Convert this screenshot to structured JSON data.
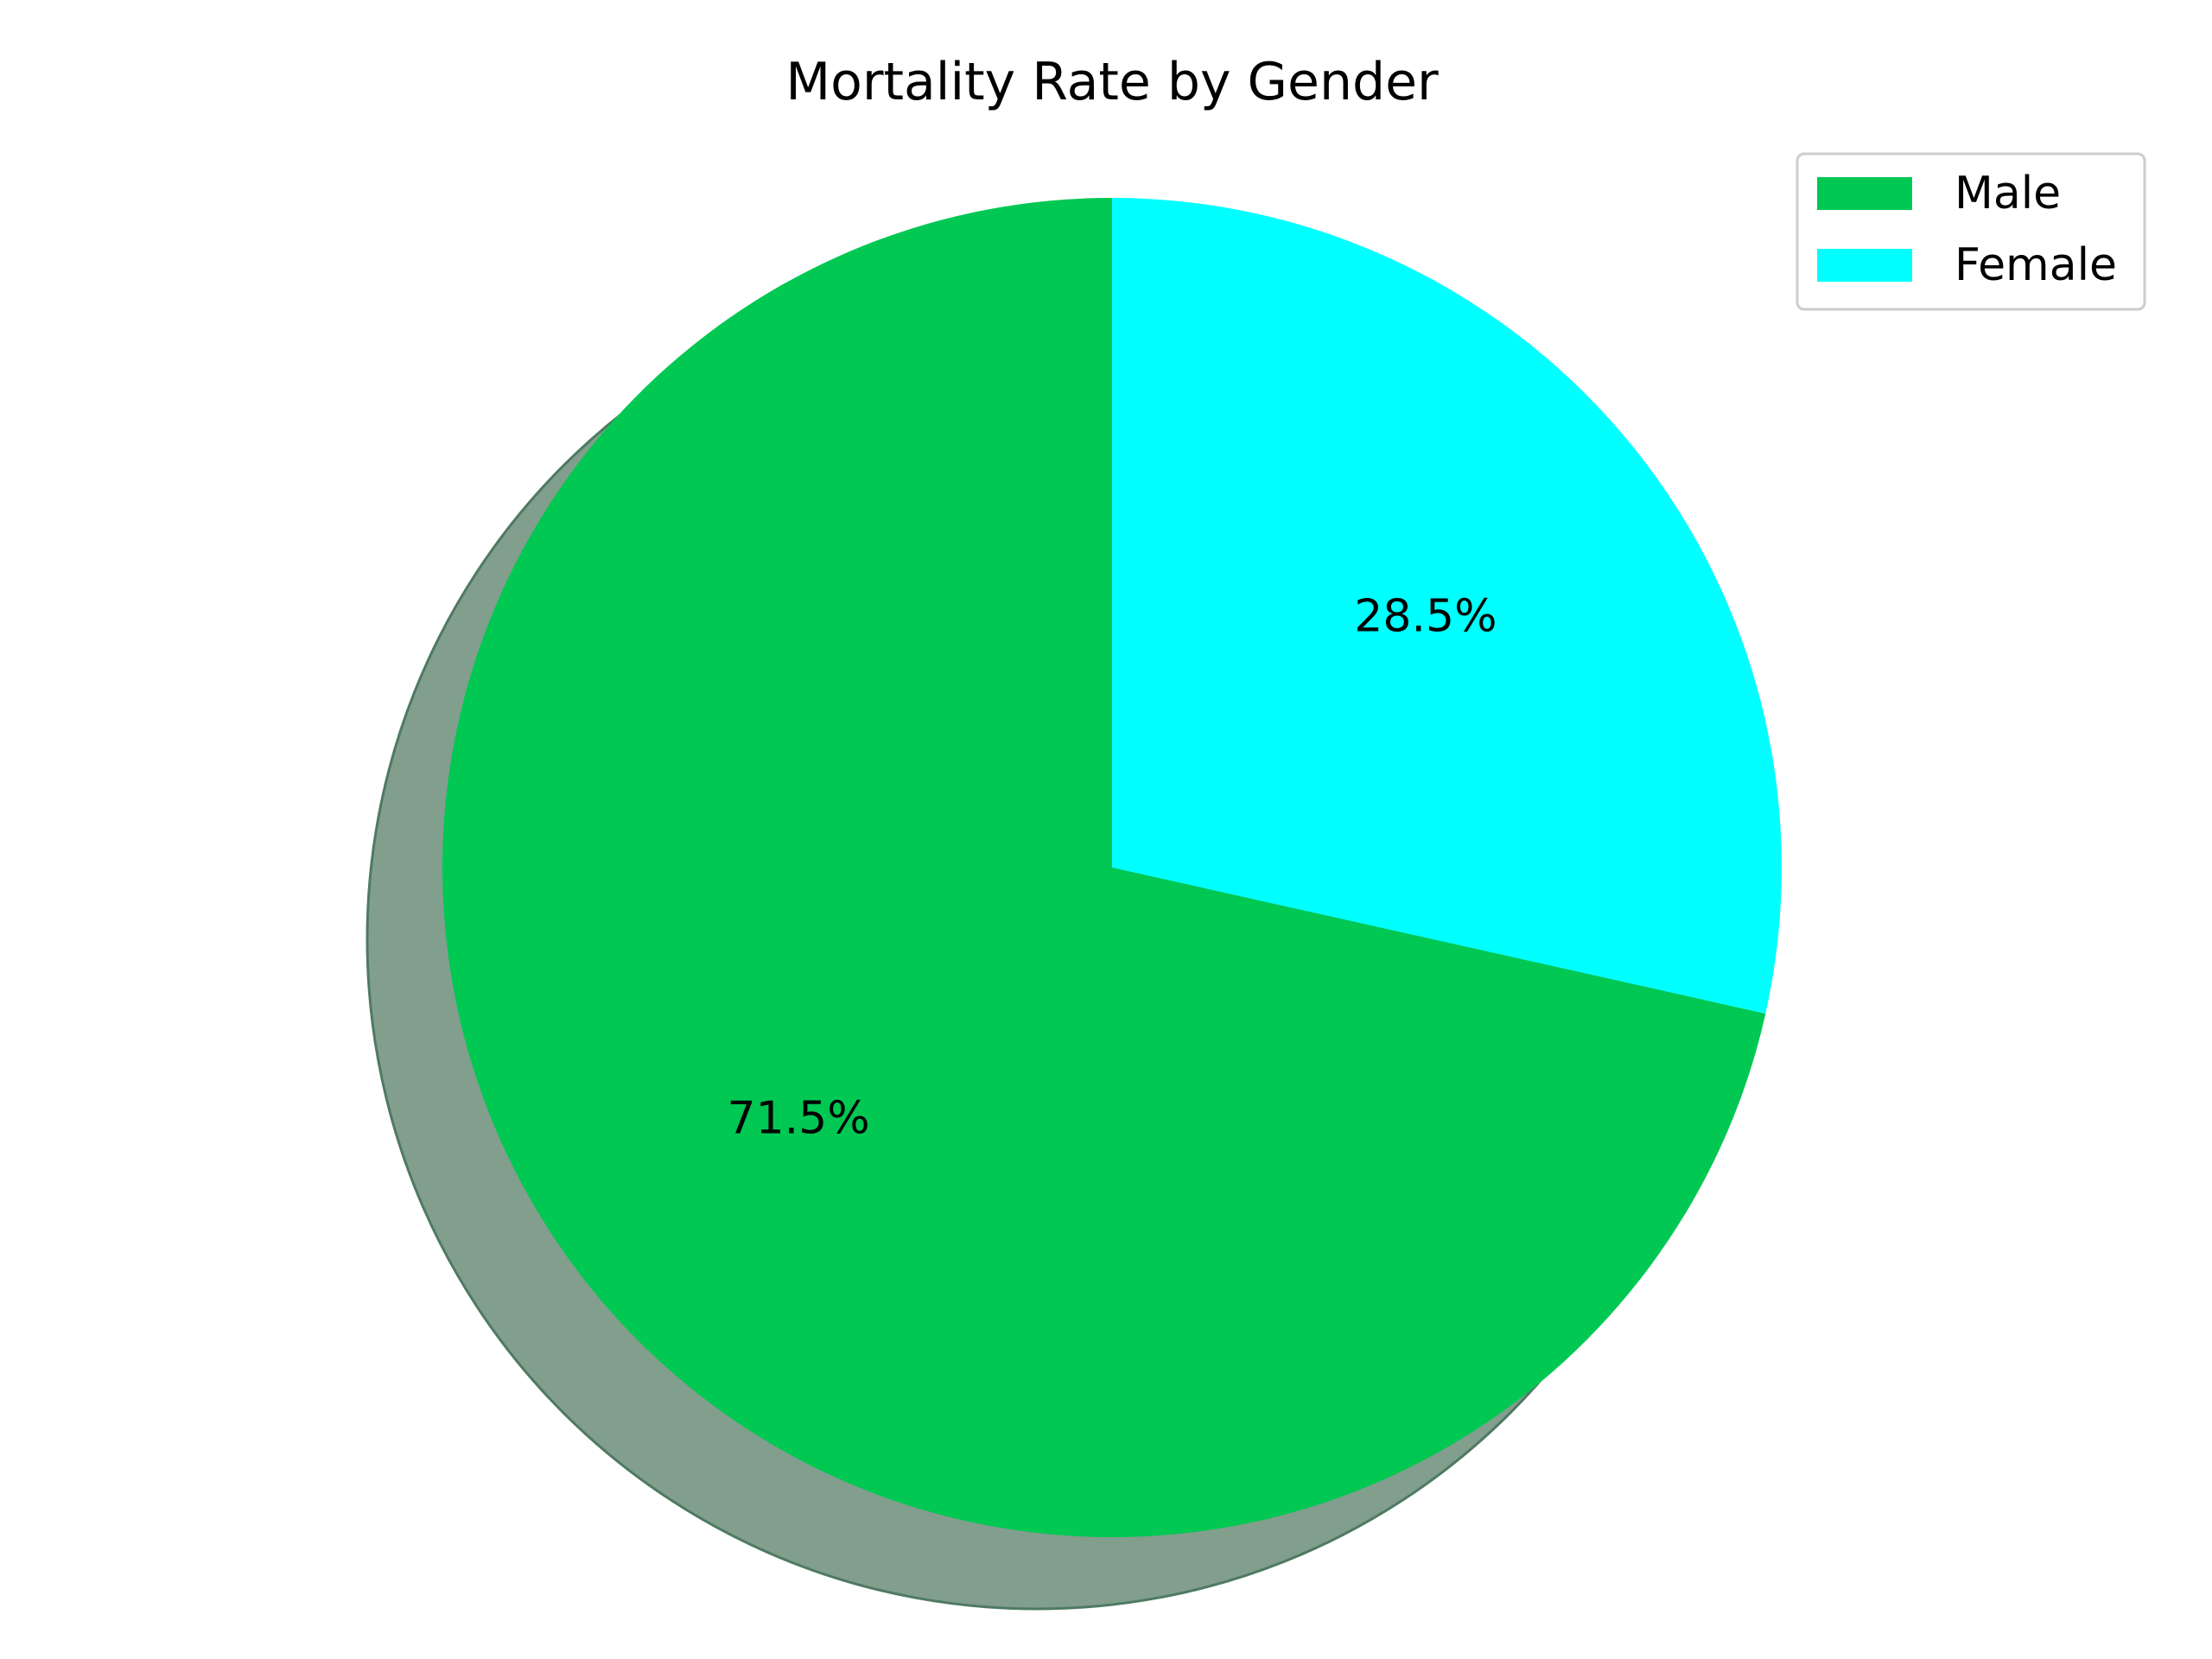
{
  "chart_data": {
    "type": "pie",
    "title": "Mortality Rate by Gender",
    "labels": [
      "Male",
      "Female"
    ],
    "values": [
      71.5,
      28.5
    ],
    "value_labels": [
      "71.5%",
      "28.5%"
    ],
    "colors": [
      "#00c853",
      "#00ffff"
    ],
    "start_angle_deg": 90,
    "direction": "counterclockwise",
    "shadow": true,
    "shadow_color": "#829e8d",
    "legend": {
      "position": "top-right",
      "entries": [
        "Male",
        "Female"
      ]
    }
  }
}
